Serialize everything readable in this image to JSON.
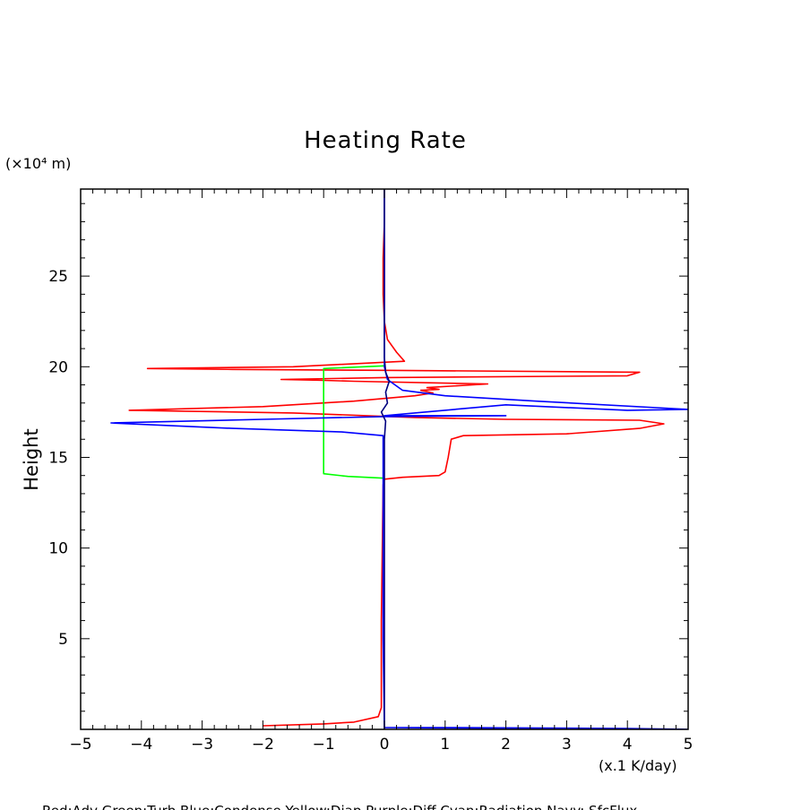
{
  "chart_data": {
    "type": "line",
    "title": "Heating Rate",
    "ylabel": "Height",
    "y_unit": "(×10⁴ m)",
    "x_unit": "(x.1 K/day)",
    "xlim": [
      -5,
      5
    ],
    "ylim": [
      0,
      29.8
    ],
    "x_ticks": [
      -5,
      -4,
      -3,
      -2,
      -1,
      0,
      1,
      2,
      3,
      4,
      5
    ],
    "y_ticks": [
      5,
      10,
      15,
      20,
      25
    ],
    "grid": false,
    "legend_text": "Red:Adv  Green:Turb  Blue:Condense  Yellow:Diap  Purple:Diff  Cyan:Radiation  Navy: SfcFlux",
    "series": [
      {
        "color": "#ff0000",
        "points": [
          [
            -2.0,
            0.2
          ],
          [
            -1.0,
            0.3
          ],
          [
            -0.5,
            0.4
          ],
          [
            -0.1,
            0.7
          ],
          [
            -0.05,
            1.2
          ],
          [
            -0.05,
            6.0
          ],
          [
            -0.02,
            13.5
          ],
          [
            0.0,
            13.8
          ],
          [
            0.3,
            13.9
          ],
          [
            0.9,
            14.0
          ],
          [
            1.0,
            14.2
          ],
          [
            1.05,
            15.0
          ],
          [
            1.1,
            16.0
          ],
          [
            1.3,
            16.2
          ],
          [
            3.0,
            16.3
          ],
          [
            4.2,
            16.6
          ],
          [
            4.6,
            16.85
          ],
          [
            4.2,
            17.05
          ],
          [
            2.0,
            17.1
          ],
          [
            0.5,
            17.2
          ],
          [
            -0.3,
            17.3
          ],
          [
            -1.5,
            17.45
          ],
          [
            -4.2,
            17.6
          ],
          [
            -2.0,
            17.8
          ],
          [
            -0.5,
            18.1
          ],
          [
            0.5,
            18.4
          ],
          [
            0.8,
            18.55
          ],
          [
            0.6,
            18.7
          ],
          [
            0.9,
            18.75
          ],
          [
            0.7,
            18.85
          ],
          [
            1.7,
            19.05
          ],
          [
            -0.5,
            19.2
          ],
          [
            -1.0,
            19.25
          ],
          [
            -1.7,
            19.3
          ],
          [
            0.0,
            19.4
          ],
          [
            4.0,
            19.5
          ],
          [
            4.2,
            19.7
          ],
          [
            0.0,
            19.8
          ],
          [
            -2.5,
            19.85
          ],
          [
            -3.9,
            19.9
          ],
          [
            -1.5,
            20.0
          ],
          [
            0.33,
            20.3
          ],
          [
            0.2,
            20.8
          ],
          [
            0.05,
            21.5
          ],
          [
            0.0,
            22.5
          ],
          [
            -0.02,
            24.0
          ],
          [
            -0.02,
            26.0
          ],
          [
            0.0,
            28.0
          ],
          [
            0.0,
            29.8
          ]
        ]
      },
      {
        "color": "#00ff00",
        "points": [
          [
            0.0,
            13.85
          ],
          [
            -0.6,
            13.95
          ],
          [
            -1.0,
            14.1
          ],
          [
            -1.0,
            16.0
          ],
          [
            -1.0,
            19.9
          ],
          [
            0.0,
            20.05
          ]
        ]
      },
      {
        "color": "#0000ff",
        "points": [
          [
            0.0,
            0.1
          ],
          [
            1.0,
            0.1
          ],
          [
            4.0,
            0.05
          ],
          [
            5.0,
            0.0
          ],
          [
            0.0,
            0.1
          ],
          [
            -0.02,
            5.0
          ],
          [
            -0.02,
            10.0
          ],
          [
            -0.02,
            15.0
          ],
          [
            -0.02,
            16.2
          ],
          [
            -0.7,
            16.4
          ],
          [
            -2.5,
            16.6
          ],
          [
            -4.5,
            16.9
          ],
          [
            -2.0,
            17.1
          ],
          [
            0.0,
            17.25
          ],
          [
            2.0,
            17.3
          ],
          [
            0.0,
            17.3
          ],
          [
            2.0,
            17.9
          ],
          [
            4.0,
            17.6
          ],
          [
            5.0,
            17.65
          ],
          [
            2.5,
            18.1
          ],
          [
            1.0,
            18.4
          ],
          [
            0.3,
            18.7
          ],
          [
            0.05,
            19.3
          ],
          [
            0.0,
            20.0
          ],
          [
            0.0,
            22.0
          ],
          [
            0.0,
            29.8
          ]
        ]
      },
      {
        "color": "#000080",
        "points": [
          [
            0.0,
            0.0
          ],
          [
            0.0,
            10.0
          ],
          [
            0.0,
            16.0
          ],
          [
            0.02,
            17.0
          ],
          [
            -0.05,
            17.5
          ],
          [
            0.05,
            18.0
          ],
          [
            0.02,
            18.6
          ],
          [
            0.08,
            19.2
          ],
          [
            0.02,
            19.7
          ],
          [
            0.0,
            20.5
          ],
          [
            0.0,
            29.8
          ]
        ]
      }
    ]
  }
}
